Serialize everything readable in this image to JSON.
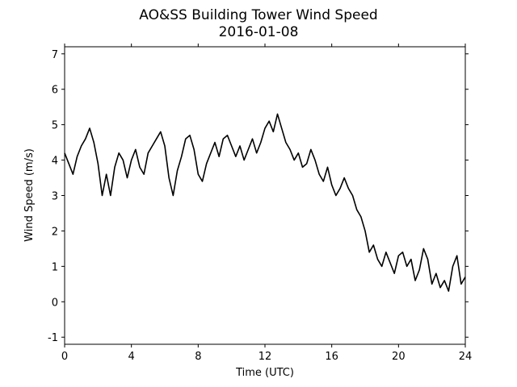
{
  "chart_data": {
    "type": "line",
    "title": "AO&SS Building Tower Wind Speed",
    "subtitle": "2016-01-08",
    "x_label": "Time (UTC)",
    "y_label": "Wind Speed (m/s)",
    "x": [
      0,
      0.25,
      0.5,
      0.75,
      1,
      1.25,
      1.5,
      1.75,
      2,
      2.25,
      2.5,
      2.75,
      3,
      3.25,
      3.5,
      3.75,
      4,
      4.25,
      4.5,
      4.75,
      5,
      5.25,
      5.5,
      5.75,
      6,
      6.25,
      6.5,
      6.75,
      7,
      7.25,
      7.5,
      7.75,
      8,
      8.25,
      8.5,
      8.75,
      9,
      9.25,
      9.5,
      9.75,
      10,
      10.25,
      10.5,
      10.75,
      11,
      11.25,
      11.5,
      11.75,
      12,
      12.25,
      12.5,
      12.75,
      13,
      13.25,
      13.5,
      13.75,
      14,
      14.25,
      14.5,
      14.75,
      15,
      15.25,
      15.5,
      15.75,
      16,
      16.25,
      16.5,
      16.75,
      17,
      17.25,
      17.5,
      17.75,
      18,
      18.25,
      18.5,
      18.75,
      19,
      19.25,
      19.5,
      19.75,
      20,
      20.25,
      20.5,
      20.75,
      21,
      21.25,
      21.5,
      21.75,
      22,
      22.25,
      22.5,
      22.75,
      23,
      23.25,
      23.5,
      23.75,
      24
    ],
    "series": [
      {
        "name": "Wind Speed",
        "color": "#000000",
        "values": [
          4.2,
          3.9,
          3.6,
          4.1,
          4.4,
          4.6,
          4.9,
          4.5,
          3.9,
          3.0,
          3.6,
          3.0,
          3.8,
          4.2,
          4.0,
          3.5,
          4.0,
          4.3,
          3.8,
          3.6,
          4.2,
          4.4,
          4.6,
          4.8,
          4.4,
          3.5,
          3.0,
          3.7,
          4.1,
          4.6,
          4.7,
          4.3,
          3.6,
          3.4,
          3.9,
          4.2,
          4.5,
          4.1,
          4.6,
          4.7,
          4.4,
          4.1,
          4.4,
          4.0,
          4.3,
          4.6,
          4.2,
          4.5,
          4.9,
          5.1,
          4.8,
          5.3,
          4.9,
          4.5,
          4.3,
          4.0,
          4.2,
          3.8,
          3.9,
          4.3,
          4.0,
          3.6,
          3.4,
          3.8,
          3.3,
          3.0,
          3.2,
          3.5,
          3.2,
          3.0,
          2.6,
          2.4,
          2.0,
          1.4,
          1.6,
          1.2,
          1.0,
          1.4,
          1.1,
          0.8,
          1.3,
          1.4,
          1.0,
          1.2,
          0.6,
          0.9,
          1.5,
          1.2,
          0.5,
          0.8,
          0.4,
          0.6,
          0.3,
          1.0,
          1.3,
          0.5,
          0.7
        ]
      }
    ],
    "xlim": [
      0,
      24
    ],
    "xticks": [
      0,
      4,
      8,
      12,
      16,
      20,
      24
    ],
    "ylim": [
      -1.2,
      7.2
    ],
    "yticks": [
      -1,
      0,
      1,
      2,
      3,
      4,
      5,
      6,
      7
    ],
    "grid": false
  }
}
